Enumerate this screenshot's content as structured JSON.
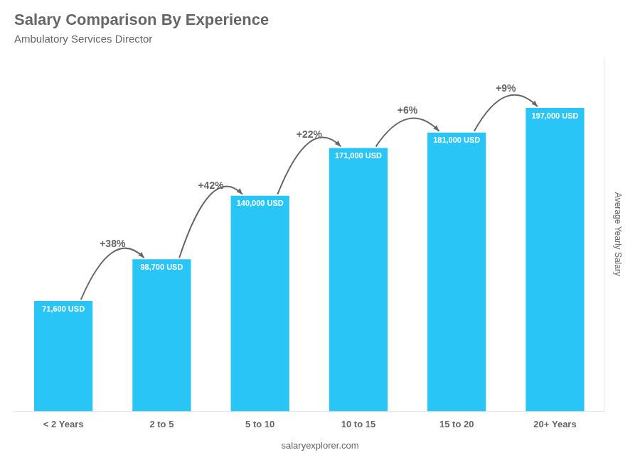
{
  "chart_data": {
    "type": "bar",
    "title": "Salary Comparison By Experience",
    "subtitle": "Ambulatory Services Director",
    "ylabel": "Average Yearly Salary",
    "categories": [
      "< 2 Years",
      "2 to 5",
      "5 to 10",
      "10 to 15",
      "15 to 20",
      "20+ Years"
    ],
    "values": [
      71600,
      98700,
      140000,
      171000,
      181000,
      197000
    ],
    "value_labels": [
      "71,600 USD",
      "98,700 USD",
      "140,000 USD",
      "171,000 USD",
      "181,000 USD",
      "197,000 USD"
    ],
    "data_labels": true,
    "annotations": [
      "+38%",
      "+42%",
      "+22%",
      "+6%",
      "+9%"
    ],
    "footer": "salaryexplorer.com",
    "color": "#29c5f6",
    "ylim": [
      0,
      230000
    ],
    "grid": false,
    "tick_labels": "x"
  }
}
